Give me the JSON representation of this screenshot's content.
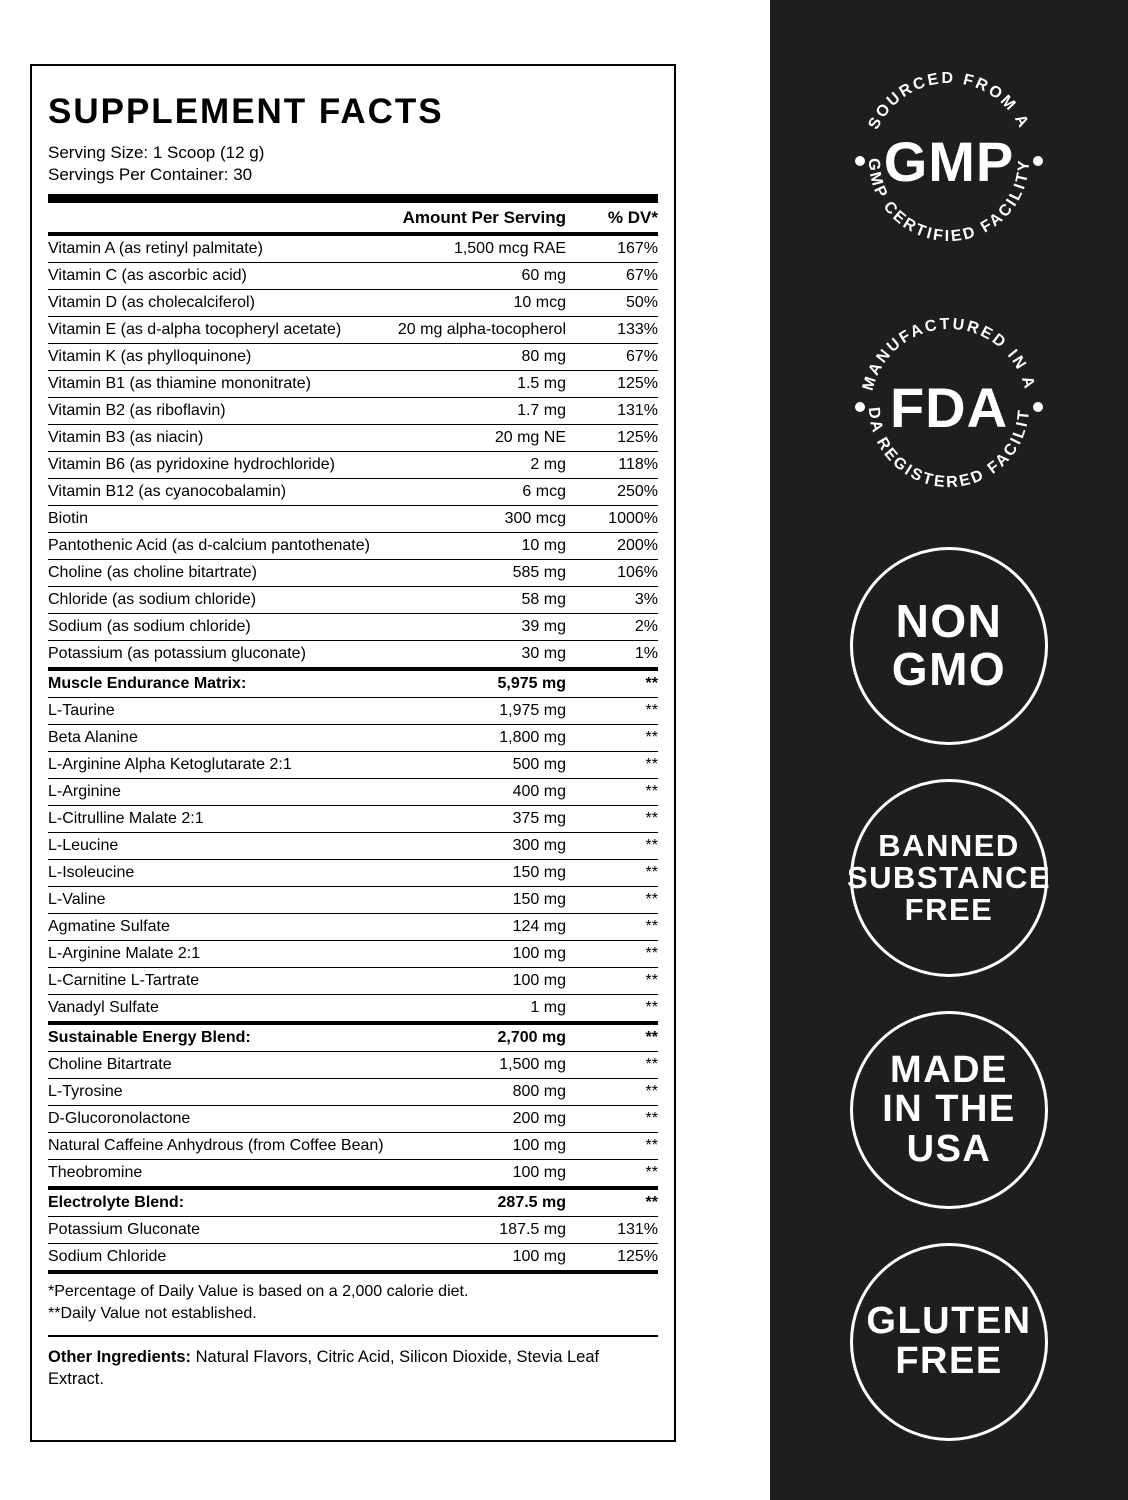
{
  "colors": {
    "panel_bg": "#1F1D1D",
    "badge_color": "#FFFFFF",
    "text_color": "#000000"
  },
  "label": {
    "title": "SUPPLEMENT FACTS",
    "serving_size": "Serving Size: 1 Scoop (12 g)",
    "servings_per_container": "Servings Per Container: 30",
    "columns": {
      "amount": "Amount Per Serving",
      "dv": "% DV*"
    },
    "rows": [
      {
        "name": "Vitamin A (as retinyl palmitate)",
        "amount": "1,500 mcg RAE",
        "dv": "167%"
      },
      {
        "name": "Vitamin C (as ascorbic acid)",
        "amount": "60 mg",
        "dv": "67%"
      },
      {
        "name": "Vitamin D (as cholecalciferol)",
        "amount": "10 mcg",
        "dv": "50%"
      },
      {
        "name": "Vitamin E (as d-alpha tocopheryl acetate)",
        "amount": "20 mg alpha-tocopherol",
        "dv": "133%"
      },
      {
        "name": "Vitamin K (as phylloquinone)",
        "amount": "80 mg",
        "dv": "67%"
      },
      {
        "name": "Vitamin B1 (as thiamine mononitrate)",
        "amount": "1.5 mg",
        "dv": "125%"
      },
      {
        "name": "Vitamin B2 (as riboflavin)",
        "amount": "1.7 mg",
        "dv": "131%"
      },
      {
        "name": "Vitamin B3 (as niacin)",
        "amount": "20 mg NE",
        "dv": "125%"
      },
      {
        "name": "Vitamin B6 (as pyridoxine hydrochloride)",
        "amount": "2 mg",
        "dv": "118%"
      },
      {
        "name": "Vitamin B12 (as cyanocobalamin)",
        "amount": "6 mcg",
        "dv": "250%"
      },
      {
        "name": "Biotin",
        "amount": "300 mcg",
        "dv": "1000%"
      },
      {
        "name": "Pantothenic Acid (as d-calcium pantothenate)",
        "amount": "10 mg",
        "dv": "200%"
      },
      {
        "name": "Choline (as choline bitartrate)",
        "amount": "585 mg",
        "dv": "106%"
      },
      {
        "name": "Chloride (as sodium chloride)",
        "amount": "58 mg",
        "dv": "3%"
      },
      {
        "name": "Sodium (as sodium chloride)",
        "amount": "39 mg",
        "dv": "2%"
      },
      {
        "name": "Potassium (as potassium gluconate)",
        "amount": "30 mg",
        "dv": "1%"
      },
      {
        "name": "Muscle Endurance Matrix:",
        "amount": "5,975 mg",
        "dv": "**",
        "section": true
      },
      {
        "name": "L-Taurine",
        "amount": "1,975 mg",
        "dv": "**"
      },
      {
        "name": "Beta Alanine",
        "amount": "1,800 mg",
        "dv": "**"
      },
      {
        "name": "L-Arginine Alpha Ketoglutarate 2:1",
        "amount": "500 mg",
        "dv": "**"
      },
      {
        "name": "L-Arginine",
        "amount": "400 mg",
        "dv": "**"
      },
      {
        "name": "L-Citrulline Malate 2:1",
        "amount": "375 mg",
        "dv": "**"
      },
      {
        "name": "L-Leucine",
        "amount": "300 mg",
        "dv": "**"
      },
      {
        "name": "L-Isoleucine",
        "amount": "150 mg",
        "dv": "**"
      },
      {
        "name": "L-Valine",
        "amount": "150 mg",
        "dv": "**"
      },
      {
        "name": "Agmatine Sulfate",
        "amount": "124 mg",
        "dv": "**"
      },
      {
        "name": "L-Arginine Malate 2:1",
        "amount": "100 mg",
        "dv": "**"
      },
      {
        "name": "L-Carnitine L-Tartrate",
        "amount": "100 mg",
        "dv": "**"
      },
      {
        "name": "Vanadyl Sulfate",
        "amount": "1 mg",
        "dv": "**"
      },
      {
        "name": "Sustainable Energy Blend:",
        "amount": "2,700 mg",
        "dv": "**",
        "section": true
      },
      {
        "name": "Choline Bitartrate",
        "amount": "1,500 mg",
        "dv": "**"
      },
      {
        "name": "L-Tyrosine",
        "amount": "800 mg",
        "dv": "**"
      },
      {
        "name": "D-Glucoronolactone",
        "amount": "200 mg",
        "dv": "**"
      },
      {
        "name": "Natural Caffeine Anhydrous (from Coffee Bean)",
        "amount": "100 mg",
        "dv": "**"
      },
      {
        "name": "Theobromine",
        "amount": "100 mg",
        "dv": "**"
      },
      {
        "name": "Electrolyte Blend:",
        "amount": "287.5 mg",
        "dv": "**",
        "section": true
      },
      {
        "name": "Potassium Gluconate",
        "amount": "187.5 mg",
        "dv": "131%"
      },
      {
        "name": "Sodium Chloride",
        "amount": "100 mg",
        "dv": "125%"
      }
    ],
    "footnotes": [
      "*Percentage of Daily Value is based on a 2,000 calorie diet.",
      "**Daily Value not established."
    ],
    "other_ingredients": {
      "label": "Other Ingredients:",
      "text": "Natural Flavors, Citric Acid, Silicon Dioxide, Stevia Leaf Extract."
    }
  },
  "badges": {
    "gmp": {
      "top": "SOURCED FROM A",
      "center": "GMP",
      "bottom": "GMP CERTIFIED FACILITY"
    },
    "fda": {
      "top": "MANUFACTURED IN A",
      "center": "FDA",
      "bottom": "FDA REGISTERED FACILITY"
    },
    "circles": [
      {
        "name": "non-gmo",
        "lines": [
          "NON",
          "GMO"
        ]
      },
      {
        "name": "banned-substance-free",
        "lines": [
          "BANNED",
          "SUBSTANCE",
          "FREE"
        ]
      },
      {
        "name": "made-in-the-usa",
        "lines": [
          "MADE",
          "IN THE",
          "USA"
        ]
      },
      {
        "name": "gluten-free",
        "lines": [
          "GLUTEN",
          "FREE"
        ]
      }
    ]
  }
}
